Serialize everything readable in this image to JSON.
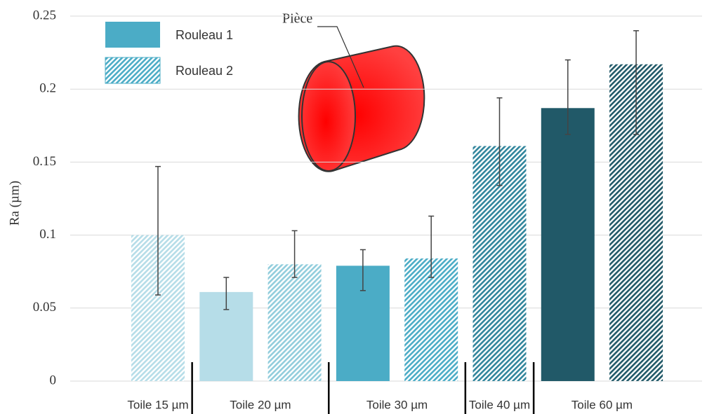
{
  "chart_data": {
    "type": "bar",
    "y_label": "Ra (µm)",
    "annotation": "Pièce",
    "categories": [
      "Toile 15 µm",
      "Toile 20 µm",
      "Toile 30 µm",
      "Toile 40 µm",
      "Toile 60 µm"
    ],
    "series": [
      {
        "name": "Rouleau 1",
        "color": "#4bacc6",
        "hatch": false,
        "colors": [
          null,
          "#b6dde8",
          "#4bacc6",
          null,
          "#215968"
        ],
        "values": [
          null,
          0.061,
          0.079,
          null,
          0.187
        ],
        "error_low": [
          null,
          0.049,
          0.062,
          null,
          0.169
        ],
        "error_high": [
          null,
          0.071,
          0.09,
          null,
          0.22
        ]
      },
      {
        "name": "Rouleau 2",
        "color": "#4bacc6",
        "hatch": true,
        "colors": [
          "#b6dde8",
          "#92cddc",
          "#4bacc6",
          "#31859c",
          "#215968"
        ],
        "values": [
          0.1,
          0.08,
          0.084,
          0.161,
          0.217
        ],
        "error_low": [
          0.059,
          0.071,
          0.071,
          0.134,
          0.169
        ],
        "error_high": [
          0.147,
          0.103,
          0.113,
          0.194,
          0.24
        ]
      }
    ],
    "ylim": [
      0,
      0.25
    ],
    "yticks": [
      0,
      0.05,
      0.1,
      0.15,
      0.2,
      0.25
    ],
    "grid": true
  }
}
